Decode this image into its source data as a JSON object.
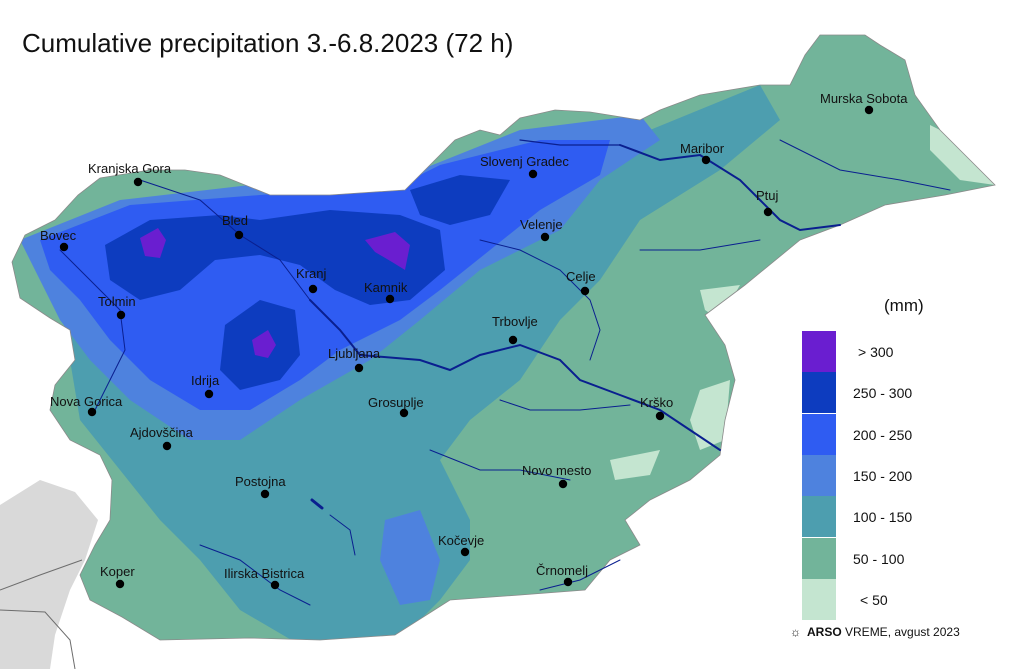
{
  "title": "Cumulative precipitation 3.-6.8.2023 (72 h)",
  "legend": {
    "unit": "(mm)",
    "classes": [
      {
        "label": "> 300",
        "color": "#6a1ed0"
      },
      {
        "label": "250 - 300",
        "color": "#0d3cbf"
      },
      {
        "label": "200 - 250",
        "color": "#2f5cf2"
      },
      {
        "label": "150 - 200",
        "color": "#4e82de"
      },
      {
        "label": "100 - 150",
        "color": "#4d9eaf"
      },
      {
        "label": "50 - 100",
        "color": "#72b49a"
      },
      {
        "label": "< 50",
        "color": "#c4e5d0"
      }
    ]
  },
  "cities": [
    "Murska Sobota",
    "Maribor",
    "Ptuj",
    "Slovenj Gradec",
    "Kranjska Gora",
    "Bled",
    "Velenje",
    "Bovec",
    "Celje",
    "Kranj",
    "Kamnik",
    "Tolmin",
    "Trbovlje",
    "Ljubljana",
    "Idrija",
    "Grosuplje",
    "Nova Gorica",
    "Krško",
    "Ajdovščina",
    "Novo mesto",
    "Postojna",
    "Kočevje",
    "Črnomelj",
    "Koper",
    "Ilirska Bistrica"
  ],
  "credit": {
    "brand": "ARSO",
    "service": "VREME",
    "date": ", avgust 2023"
  },
  "colors": {
    "river": "#0a1f8f",
    "neighbor_land": "#d9d9d9",
    "border": "#6d6d6d"
  }
}
